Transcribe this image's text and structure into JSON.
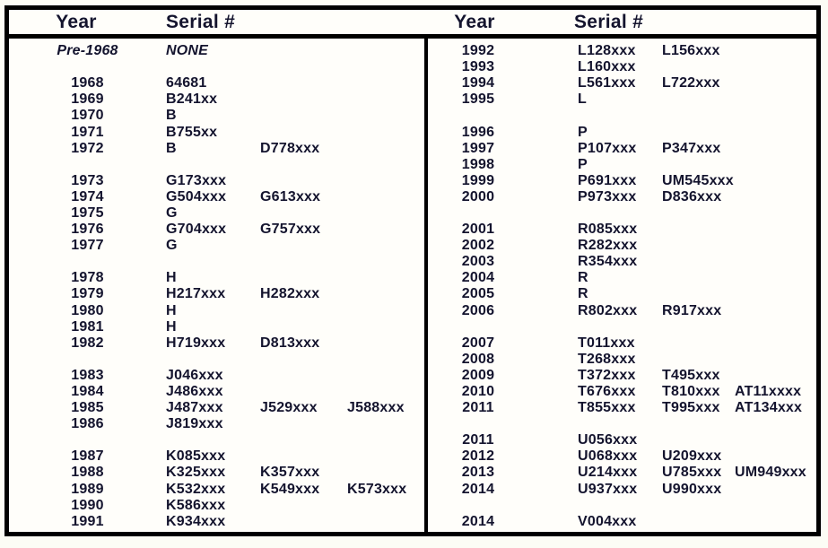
{
  "header": {
    "year_label": "Year",
    "serial_label": "Serial #"
  },
  "colors": {
    "text": "#14142e",
    "border": "#000000",
    "page_background": "#fcfcf5",
    "table_background": "#fffefa"
  },
  "left_rows": [
    {
      "year": "Pre-1968",
      "serials": [
        "NONE"
      ],
      "italic": true
    },
    {
      "year": "",
      "serials": []
    },
    {
      "year": "1968",
      "serials": [
        "64681"
      ]
    },
    {
      "year": "1969",
      "serials": [
        "B241xx"
      ]
    },
    {
      "year": "1970",
      "serials": [
        "B"
      ]
    },
    {
      "year": "1971",
      "serials": [
        "B755xx"
      ]
    },
    {
      "year": "1972",
      "serials": [
        "B",
        "D778xxx"
      ]
    },
    {
      "year": "",
      "serials": []
    },
    {
      "year": "1973",
      "serials": [
        "G173xxx"
      ]
    },
    {
      "year": "1974",
      "serials": [
        "G504xxx",
        "G613xxx"
      ]
    },
    {
      "year": "1975",
      "serials": [
        "G"
      ]
    },
    {
      "year": "1976",
      "serials": [
        "G704xxx",
        "G757xxx"
      ]
    },
    {
      "year": "1977",
      "serials": [
        "G"
      ]
    },
    {
      "year": "",
      "serials": []
    },
    {
      "year": "1978",
      "serials": [
        "H"
      ]
    },
    {
      "year": "1979",
      "serials": [
        "H217xxx",
        "H282xxx"
      ]
    },
    {
      "year": "1980",
      "serials": [
        "H"
      ]
    },
    {
      "year": "1981",
      "serials": [
        "H"
      ]
    },
    {
      "year": "1982",
      "serials": [
        "H719xxx",
        "D813xxx"
      ]
    },
    {
      "year": "",
      "serials": []
    },
    {
      "year": "1983",
      "serials": [
        "J046xxx"
      ]
    },
    {
      "year": "1984",
      "serials": [
        "J486xxx"
      ]
    },
    {
      "year": "1985",
      "serials": [
        "J487xxx",
        "J529xxx",
        "J588xxx"
      ]
    },
    {
      "year": "1986",
      "serials": [
        "J819xxx"
      ]
    },
    {
      "year": "",
      "serials": []
    },
    {
      "year": "1987",
      "serials": [
        "K085xxx"
      ]
    },
    {
      "year": "1988",
      "serials": [
        "K325xxx",
        "K357xxx"
      ]
    },
    {
      "year": "1989",
      "serials": [
        "K532xxx",
        "K549xxx",
        "K573xxx"
      ]
    },
    {
      "year": "1990",
      "serials": [
        "K586xxx"
      ]
    },
    {
      "year": "1991",
      "serials": [
        "K934xxx"
      ]
    }
  ],
  "right_rows": [
    {
      "year": "1992",
      "serials": [
        "L128xxx",
        "L156xxx"
      ]
    },
    {
      "year": "1993",
      "serials": [
        "L160xxx"
      ]
    },
    {
      "year": "1994",
      "serials": [
        "L561xxx",
        "L722xxx"
      ]
    },
    {
      "year": "1995",
      "serials": [
        "L"
      ]
    },
    {
      "year": "",
      "serials": []
    },
    {
      "year": "1996",
      "serials": [
        "P"
      ]
    },
    {
      "year": "1997",
      "serials": [
        "P107xxx",
        "P347xxx"
      ]
    },
    {
      "year": "1998",
      "serials": [
        "P"
      ]
    },
    {
      "year": "1999",
      "serials": [
        "P691xxx",
        "UM545xxx"
      ]
    },
    {
      "year": "2000",
      "serials": [
        "P973xxx",
        "D836xxx"
      ]
    },
    {
      "year": "",
      "serials": []
    },
    {
      "year": "2001",
      "serials": [
        "R085xxx"
      ]
    },
    {
      "year": "2002",
      "serials": [
        "R282xxx"
      ]
    },
    {
      "year": "2003",
      "serials": [
        "R354xxx"
      ]
    },
    {
      "year": "2004",
      "serials": [
        "R"
      ]
    },
    {
      "year": "2005",
      "serials": [
        "R"
      ]
    },
    {
      "year": "2006",
      "serials": [
        "R802xxx",
        "R917xxx"
      ]
    },
    {
      "year": "",
      "serials": []
    },
    {
      "year": "2007",
      "serials": [
        "T011xxx"
      ]
    },
    {
      "year": "2008",
      "serials": [
        "T268xxx"
      ]
    },
    {
      "year": "2009",
      "serials": [
        "T372xxx",
        "T495xxx"
      ]
    },
    {
      "year": "2010",
      "serials": [
        "T676xxx",
        "T810xxx",
        "AT11xxxx"
      ]
    },
    {
      "year": "2011",
      "serials": [
        "T855xxx",
        "T995xxx",
        "AT134xxx"
      ]
    },
    {
      "year": "",
      "serials": []
    },
    {
      "year": "2011",
      "serials": [
        "U056xxx"
      ]
    },
    {
      "year": "2012",
      "serials": [
        "U068xxx",
        "U209xxx"
      ]
    },
    {
      "year": "2013",
      "serials": [
        "U214xxx",
        "U785xxx",
        "UM949xxx"
      ]
    },
    {
      "year": "2014",
      "serials": [
        "U937xxx",
        "U990xxx"
      ]
    },
    {
      "year": "",
      "serials": []
    },
    {
      "year": "2014",
      "serials": [
        "V004xxx"
      ]
    }
  ]
}
